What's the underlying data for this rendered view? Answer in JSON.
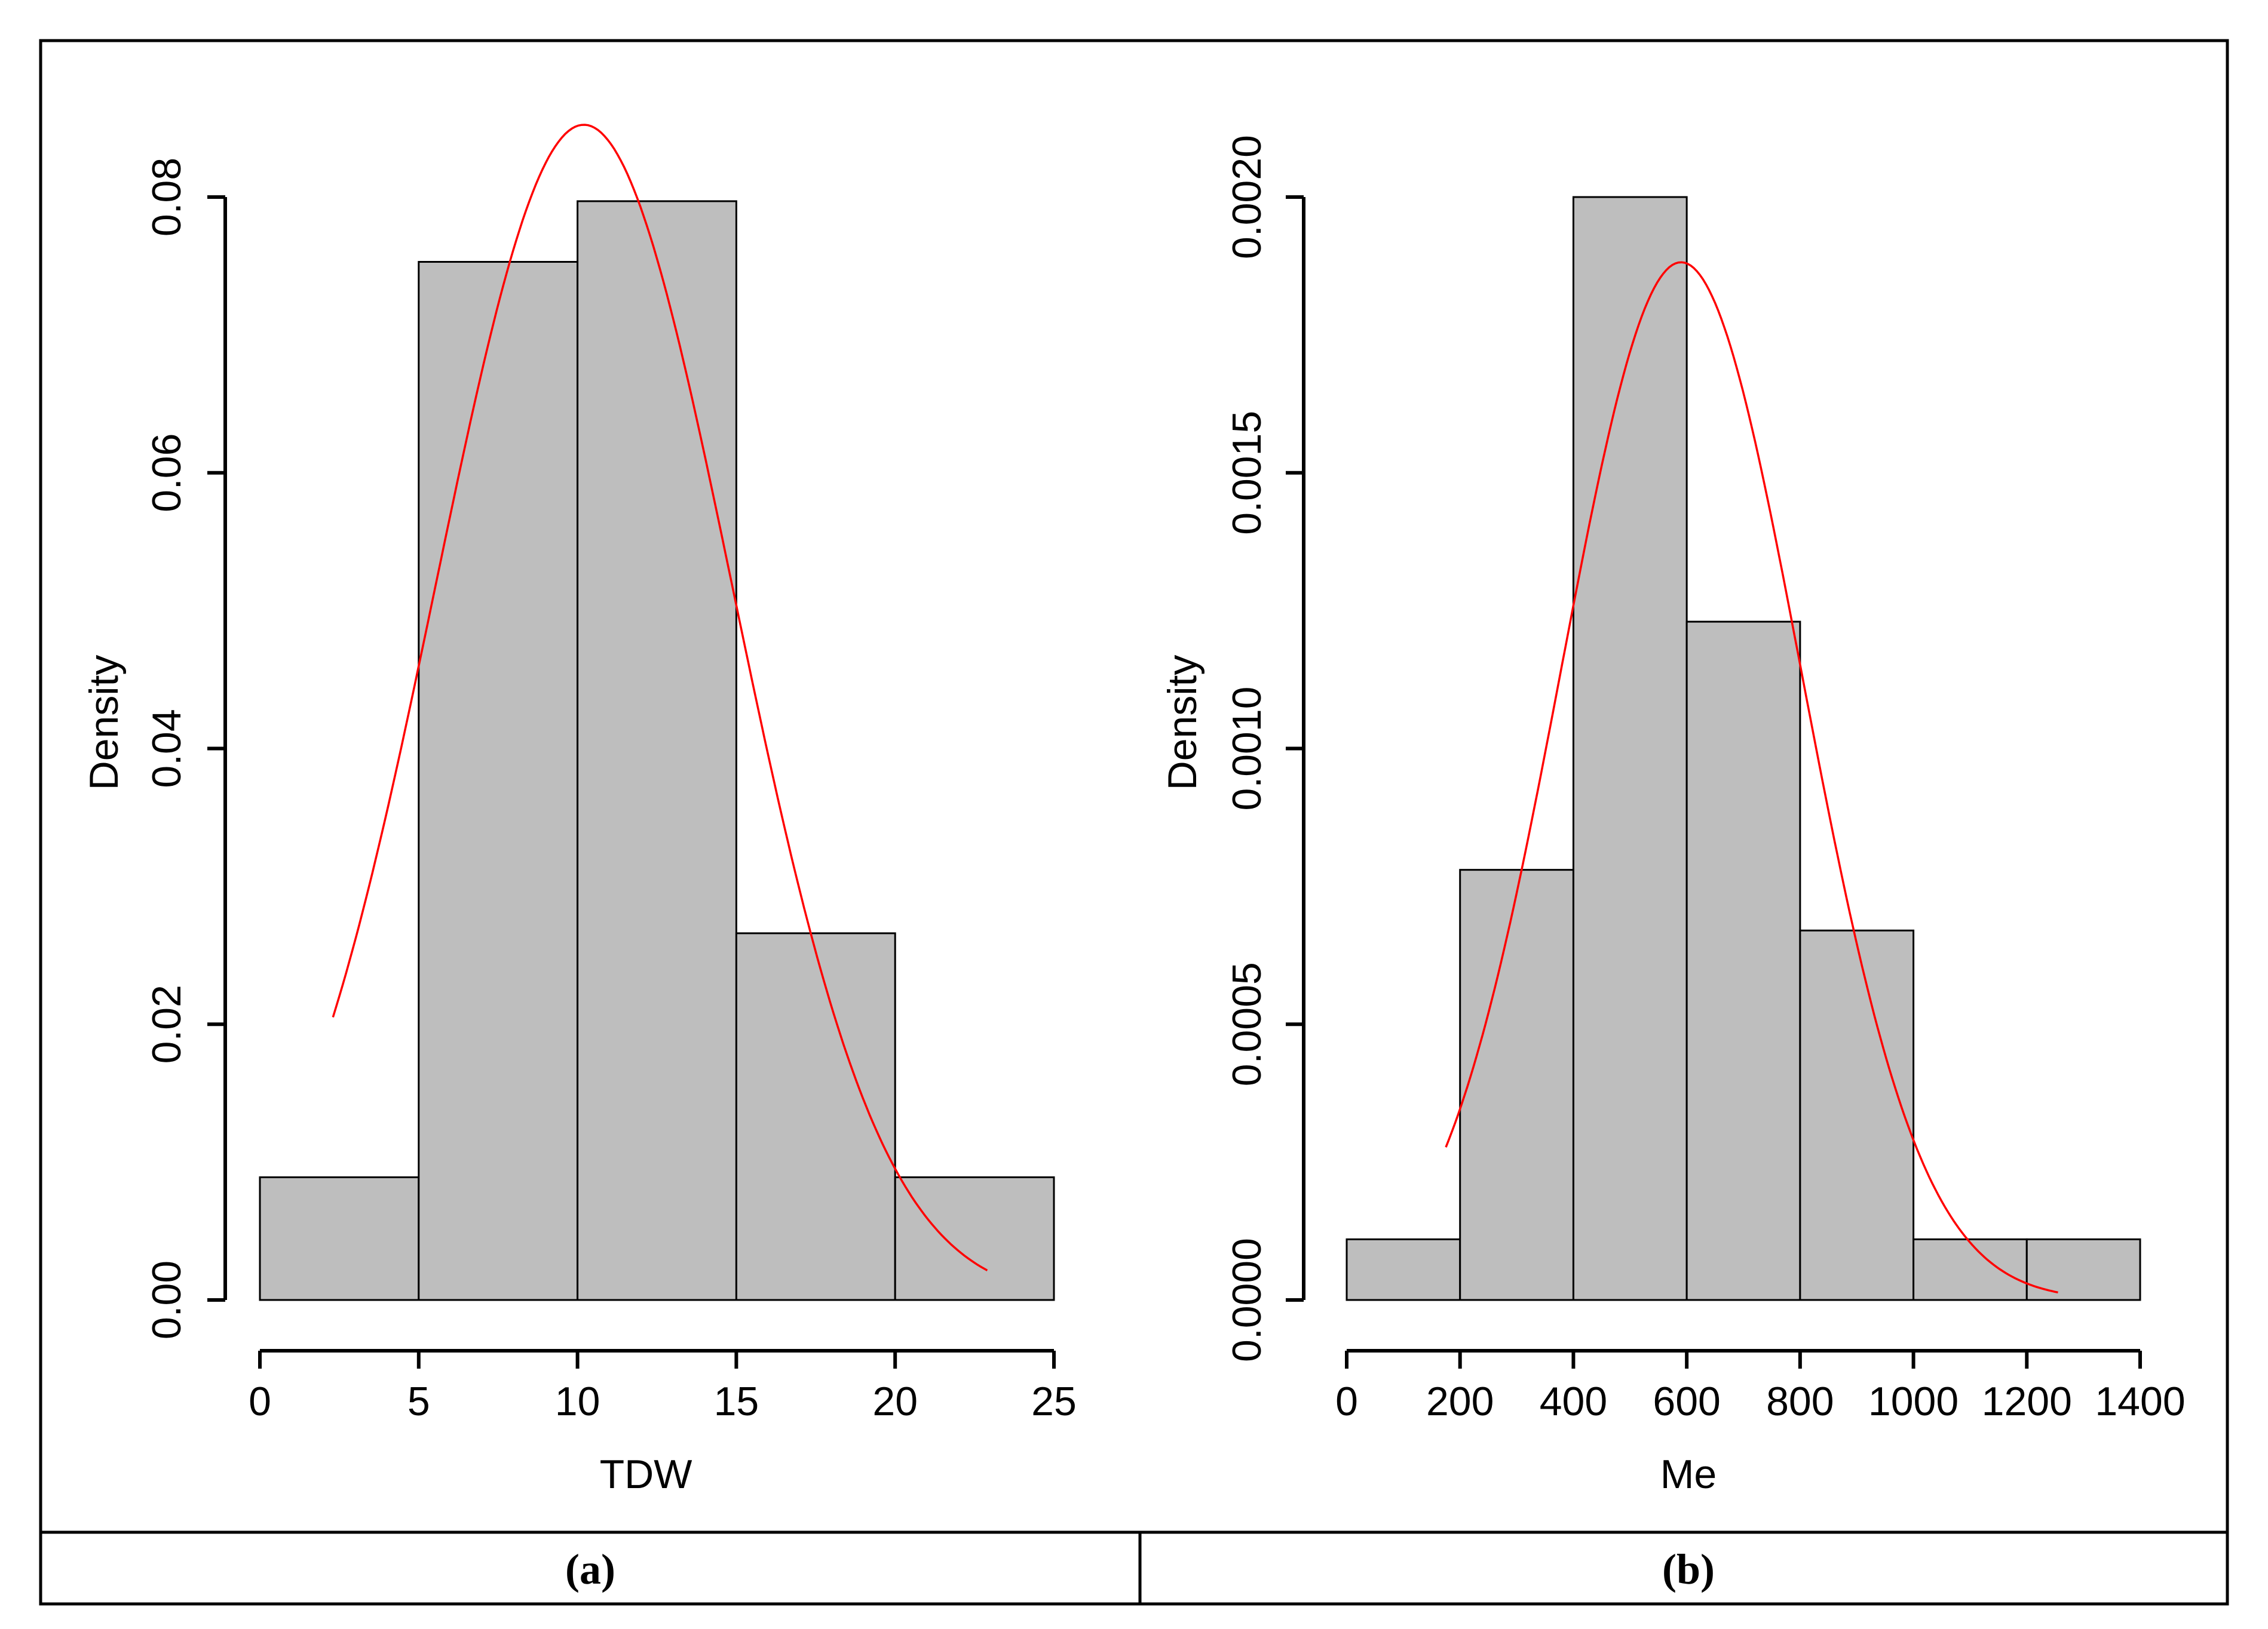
{
  "colors": {
    "bar_fill": "#bebebe",
    "curve": "#ff0000",
    "outline": "#000000"
  },
  "chart_data": [
    {
      "type": "bar",
      "panel_label": "(a)",
      "xlabel": "TDW",
      "ylabel": "Density",
      "bin_edges": [
        0,
        5,
        10,
        15,
        20,
        25
      ],
      "values": [
        0.0089,
        0.0753,
        0.0797,
        0.0266,
        0.0089
      ],
      "x_ticks": [
        0,
        5,
        10,
        15,
        20,
        25
      ],
      "x_tick_labels": [
        "0",
        "5",
        "10",
        "15",
        "20",
        "25"
      ],
      "y_ticks": [
        0,
        0.02,
        0.04,
        0.06,
        0.08
      ],
      "y_tick_labels": [
        "0.00",
        "0.02",
        "0.04",
        "0.06",
        "0.08"
      ],
      "xlim": [
        0,
        25
      ],
      "ylim": [
        0,
        0.08
      ],
      "overlay": {
        "type": "normal-density",
        "mean": 10.2,
        "sd": 4.68,
        "x_from": 2.3,
        "x_to": 22.9
      }
    },
    {
      "type": "bar",
      "panel_label": "(b)",
      "xlabel": "Me",
      "ylabel": "Density",
      "bin_edges": [
        0,
        200,
        400,
        600,
        800,
        1000,
        1200,
        1400
      ],
      "values": [
        0.00011,
        0.00078,
        0.002,
        0.00123,
        0.00067,
        0.00011,
        0.00011
      ],
      "x_ticks": [
        0,
        200,
        400,
        600,
        800,
        1000,
        1200,
        1400
      ],
      "x_tick_labels": [
        "0",
        "200",
        "400",
        "600",
        "800",
        "1000",
        "1200",
        "1400"
      ],
      "y_ticks": [
        0,
        0.0005,
        0.001,
        0.0015,
        0.002
      ],
      "y_tick_labels": [
        "0.0000",
        "0.0005",
        "0.0010",
        "0.0015",
        "0.0020"
      ],
      "xlim": [
        0,
        1400
      ],
      "ylim": [
        0,
        0.002
      ],
      "overlay": {
        "type": "normal-density",
        "mean": 590,
        "sd": 212,
        "x_from": 175,
        "x_to": 1255
      }
    }
  ]
}
